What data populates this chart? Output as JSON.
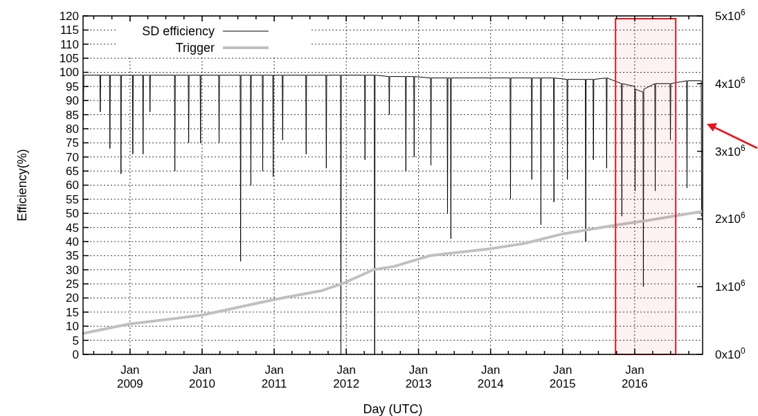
{
  "chart_data": {
    "type": "line",
    "xlabel": "Day (UTC)",
    "ylabel": "Efficiency(%)",
    "xlim": [
      "2008-05-08",
      "2016-12-10"
    ],
    "xticks": [
      {
        "value": "2008-07-01",
        "label": null
      },
      {
        "value": "2008-10-01",
        "label": null
      },
      {
        "value": "2009-01-01",
        "label": "Jan 2009"
      },
      {
        "value": "2009-04-01",
        "label": null
      },
      {
        "value": "2009-07-01",
        "label": null
      },
      {
        "value": "2009-10-01",
        "label": null
      },
      {
        "value": "2010-01-01",
        "label": "Jan 2010"
      },
      {
        "value": "2010-04-01",
        "label": null
      },
      {
        "value": "2010-07-01",
        "label": null
      },
      {
        "value": "2010-10-01",
        "label": null
      },
      {
        "value": "2011-01-01",
        "label": "Jan 2011"
      },
      {
        "value": "2011-04-01",
        "label": null
      },
      {
        "value": "2011-07-01",
        "label": null
      },
      {
        "value": "2011-10-01",
        "label": null
      },
      {
        "value": "2012-01-01",
        "label": "Jan 2012"
      },
      {
        "value": "2012-04-01",
        "label": null
      },
      {
        "value": "2012-07-01",
        "label": null
      },
      {
        "value": "2012-10-01",
        "label": null
      },
      {
        "value": "2013-01-01",
        "label": "Jan 2013"
      },
      {
        "value": "2013-04-01",
        "label": null
      },
      {
        "value": "2013-07-01",
        "label": null
      },
      {
        "value": "2013-10-01",
        "label": null
      },
      {
        "value": "2014-01-01",
        "label": "Jan 2014"
      },
      {
        "value": "2014-04-01",
        "label": null
      },
      {
        "value": "2014-07-01",
        "label": null
      },
      {
        "value": "2014-10-01",
        "label": null
      },
      {
        "value": "2015-01-01",
        "label": "Jan 2015"
      },
      {
        "value": "2015-04-01",
        "label": null
      },
      {
        "value": "2015-07-01",
        "label": null
      },
      {
        "value": "2015-10-01",
        "label": null
      },
      {
        "value": "2016-01-01",
        "label": "Jan 2016"
      },
      {
        "value": "2016-04-01",
        "label": null
      },
      {
        "value": "2016-07-01",
        "label": null
      },
      {
        "value": "2016-10-01",
        "label": null
      }
    ],
    "ylim": [
      0,
      120
    ],
    "yticks": [
      0,
      5,
      10,
      15,
      20,
      25,
      30,
      35,
      40,
      45,
      50,
      55,
      60,
      65,
      70,
      75,
      80,
      85,
      90,
      95,
      100,
      105,
      110,
      115,
      120
    ],
    "y2lim": [
      0,
      5000000
    ],
    "y2ticks": [
      {
        "value": 0,
        "label": "0x10$^{0}$"
      },
      {
        "value": 1000000,
        "label": "1x10$^{6}$"
      },
      {
        "value": 2000000,
        "label": "2x10$^{6}$"
      },
      {
        "value": 3000000,
        "label": "3x10$^{6}$"
      },
      {
        "value": 4000000,
        "label": "4x10$^{6}$"
      },
      {
        "value": 5000000,
        "label": "5x10$^{6}$"
      }
    ],
    "grid": true,
    "legend": "top left",
    "line_style": "solid",
    "bands": [
      {
        "axis": "x",
        "from": "2015-09-26",
        "to": "2016-07-27",
        "color": "#e8141c"
      }
    ],
    "series": [
      {
        "name": "SD efficiency",
        "color": "#000000",
        "x": [
          "2008-05-09",
          "2008-05-12",
          "2008-08-01",
          "2008-08-03",
          "2008-08-05",
          "2008-09-19",
          "2008-09-21",
          "2008-09-23",
          "2008-11-14",
          "2008-11-16",
          "2008-11-18",
          "2009-01-13",
          "2009-01-15",
          "2009-01-17",
          "2009-03-06",
          "2009-03-08",
          "2009-03-10",
          "2009-04-10",
          "2009-04-12",
          "2009-04-14",
          "2009-08-14",
          "2009-08-16",
          "2009-08-18",
          "2009-10-23",
          "2009-10-25",
          "2009-10-27",
          "2009-12-22",
          "2009-12-24",
          "2009-12-26",
          "2010-03-26",
          "2010-03-28",
          "2010-03-30",
          "2010-07-13",
          "2010-07-15",
          "2010-07-17",
          "2010-09-03",
          "2010-09-05",
          "2010-09-07",
          "2010-11-02",
          "2010-11-04",
          "2010-11-06",
          "2010-12-25",
          "2010-12-27",
          "2010-12-29",
          "2011-02-11",
          "2011-02-13",
          "2011-02-15",
          "2011-06-10",
          "2011-06-12",
          "2011-06-14",
          "2011-09-20",
          "2011-09-22",
          "2011-09-24",
          "2011-12-03",
          "2011-12-05",
          "2011-12-07",
          "2012-04-03",
          "2012-04-05",
          "2012-04-07",
          "2012-05-22",
          "2012-05-24",
          "2012-05-26",
          "2012-08-04",
          "2012-08-06",
          "2012-08-08",
          "2012-10-27",
          "2012-10-29",
          "2012-10-31",
          "2012-12-08",
          "2012-12-10",
          "2012-12-12",
          "2013-03-03",
          "2013-03-05",
          "2013-03-07",
          "2013-05-26",
          "2013-05-28",
          "2013-05-30",
          "2013-06-12",
          "2013-06-14",
          "2013-06-16",
          "2014-04-10",
          "2014-04-12",
          "2014-04-14",
          "2014-07-27",
          "2014-07-29",
          "2014-07-31",
          "2014-09-11",
          "2014-09-13",
          "2014-09-15",
          "2014-11-16",
          "2014-11-18",
          "2014-11-20",
          "2015-01-23",
          "2015-01-25",
          "2015-01-27",
          "2015-04-26",
          "2015-04-28",
          "2015-04-30",
          "2015-06-04",
          "2015-06-06",
          "2015-06-08",
          "2015-08-10",
          "2015-08-12",
          "2015-08-14",
          "2015-10-26",
          "2015-10-28",
          "2015-10-30",
          "2016-01-01",
          "2016-01-03",
          "2016-01-05",
          "2016-02-12",
          "2016-02-14",
          "2016-02-16",
          "2016-04-12",
          "2016-04-14",
          "2016-04-16",
          "2016-06-28",
          "2016-06-30",
          "2016-07-02",
          "2016-09-20",
          "2016-09-22",
          "2016-09-24",
          "2016-12-03",
          "2016-12-05"
        ],
        "values": [
          83,
          99,
          99,
          86,
          99,
          99,
          73,
          99,
          99,
          64,
          99,
          99,
          71,
          99,
          99,
          71,
          99,
          99,
          86,
          99,
          99,
          65,
          99,
          99,
          75,
          99,
          99,
          75,
          99,
          99,
          75,
          99,
          99,
          33,
          99,
          99,
          60,
          99,
          99,
          65,
          99,
          99,
          63,
          99,
          99,
          76,
          99,
          99,
          71,
          99,
          99,
          66,
          99,
          99,
          0,
          99,
          99,
          69,
          99,
          99,
          0,
          99,
          98.5,
          85,
          98.5,
          98.5,
          65,
          98.5,
          98.5,
          70,
          98.5,
          98,
          67,
          98,
          98,
          50,
          98,
          98,
          41,
          98,
          98,
          55,
          98,
          98,
          62,
          98,
          98,
          46,
          98,
          98,
          54,
          98,
          97.5,
          62,
          97.5,
          97.5,
          40,
          97.5,
          97.5,
          69,
          97.5,
          98,
          66,
          98,
          96,
          49,
          96,
          95,
          58,
          94,
          93,
          24,
          94,
          96,
          58,
          96,
          96,
          76,
          96,
          97,
          59,
          97,
          97,
          49
        ]
      },
      {
        "name": "Trigger",
        "color": "#c0c0c0",
        "axis": "y2",
        "x": [
          "2008-05-08",
          "2008-11-06",
          "2009-01-01",
          "2010-01-01",
          "2011-01-01",
          "2011-08-28",
          "2011-12-25",
          "2012-05-17",
          "2012-08-31",
          "2013-03-01",
          "2013-12-27",
          "2014-06-24",
          "2015-01-01",
          "2015-09-26",
          "2016-03-09",
          "2016-07-31",
          "2016-12-05"
        ],
        "values": [
          310000,
          420000,
          450000,
          580000,
          810000,
          940000,
          1060000,
          1250000,
          1300000,
          1460000,
          1560000,
          1640000,
          1780000,
          1910000,
          1980000,
          2050000,
          2110000
        ]
      }
    ]
  }
}
